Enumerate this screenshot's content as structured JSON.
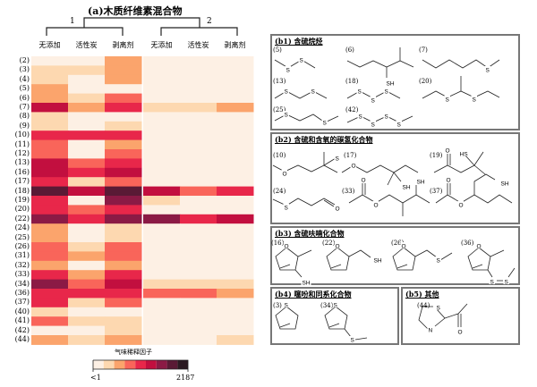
{
  "heatmap_title": "(a)木质纤维素混合物",
  "groups": [
    "1",
    "2"
  ],
  "columns": [
    "无添加",
    "活性炭",
    "剥离剂",
    "无添加",
    "活性炭",
    "剥离剂"
  ],
  "legend": {
    "title": "气味稀释因子",
    "min_label": "<1",
    "max_label": "2187"
  },
  "chart_data": {
    "type": "heatmap",
    "title": "(a)木质纤维素混合物",
    "column_groups": [
      {
        "name": "1",
        "columns": [
          "无添加",
          "活性炭",
          "剥离剂"
        ]
      },
      {
        "name": "2",
        "columns": [
          "无添加",
          "活性炭",
          "剥离剂"
        ]
      }
    ],
    "rows": [
      "(2)",
      "(3)",
      "(4)",
      "(5)",
      "(6)",
      "(7)",
      "(8)",
      "(9)",
      "(10)",
      "(11)",
      "(12)",
      "(13)",
      "(16)",
      "(17)",
      "(18)",
      "(19)",
      "(20)",
      "(22)",
      "(24)",
      "(25)",
      "(26)",
      "(31)",
      "(32)",
      "(33)",
      "(34)",
      "(36)",
      "(37)",
      "(40)",
      "(41)",
      "(42)",
      "(44)"
    ],
    "value_scale": "color level 0 (<1) to 8 (2187), odor dilution factor",
    "levels": [
      [
        0,
        0,
        2,
        0,
        0,
        0
      ],
      [
        1,
        1,
        2,
        0,
        0,
        0
      ],
      [
        1,
        0,
        2,
        0,
        0,
        0
      ],
      [
        2,
        0,
        0,
        0,
        0,
        0
      ],
      [
        2,
        1,
        3,
        0,
        0,
        0
      ],
      [
        5,
        2,
        4,
        1,
        1,
        2
      ],
      [
        1,
        0,
        0,
        0,
        0,
        0
      ],
      [
        1,
        0,
        1,
        0,
        0,
        0
      ],
      [
        4,
        4,
        4,
        0,
        0,
        0
      ],
      [
        3,
        0,
        2,
        0,
        0,
        0
      ],
      [
        3,
        0,
        3,
        0,
        0,
        0
      ],
      [
        5,
        3,
        4,
        0,
        0,
        0
      ],
      [
        5,
        4,
        5,
        0,
        0,
        0
      ],
      [
        4,
        1,
        3,
        0,
        0,
        0
      ],
      [
        7,
        5,
        7,
        5,
        3,
        4
      ],
      [
        4,
        0,
        6,
        1,
        0,
        0
      ],
      [
        4,
        3,
        4,
        0,
        0,
        0
      ],
      [
        6,
        4,
        6,
        6,
        4,
        5
      ],
      [
        2,
        0,
        1,
        0,
        0,
        0
      ],
      [
        2,
        0,
        1,
        0,
        0,
        0
      ],
      [
        3,
        1,
        3,
        0,
        0,
        0
      ],
      [
        3,
        2,
        3,
        0,
        0,
        0
      ],
      [
        2,
        0,
        2,
        0,
        0,
        0
      ],
      [
        4,
        2,
        4,
        0,
        0,
        0
      ],
      [
        6,
        3,
        5,
        1,
        1,
        1
      ],
      [
        4,
        4,
        4,
        3,
        3,
        2
      ],
      [
        4,
        1,
        3,
        0,
        0,
        0
      ],
      [
        1,
        0,
        0,
        0,
        0,
        0
      ],
      [
        3,
        1,
        1,
        0,
        0,
        0
      ],
      [
        0,
        0,
        1,
        0,
        0,
        0
      ],
      [
        2,
        1,
        2,
        0,
        0,
        1
      ]
    ],
    "colorscale": [
      "#fdf0e4",
      "#fdd8b0",
      "#fba46c",
      "#f9655a",
      "#e8274a",
      "#c20f3f",
      "#8b1a45",
      "#5a1a35",
      "#2b1a22"
    ],
    "legend_title": "气味稀释因子",
    "range_labels": [
      "<1",
      "2187"
    ]
  },
  "panels": [
    {
      "title": "(b1) 含硫烷烃",
      "compounds": [
        {
          "num": "(5)",
          "atoms": [
            "S",
            "S"
          ]
        },
        {
          "num": "(6)",
          "atoms": [
            "SH"
          ]
        },
        {
          "num": "(7)",
          "atoms": [
            "S"
          ]
        },
        {
          "num": "(13)",
          "atoms": [
            "S",
            "S"
          ]
        },
        {
          "num": "(18)",
          "atoms": [
            "S",
            "S",
            "S"
          ]
        },
        {
          "num": "(20)",
          "atoms": [
            "S",
            "S"
          ]
        },
        {
          "num": "(25)",
          "atoms": [
            "S",
            "S"
          ]
        },
        {
          "num": "(42)",
          "atoms": [
            "S",
            "S",
            "S",
            "S"
          ]
        }
      ]
    },
    {
      "title": "(b2) 含硫和含氧的碳氢化合物",
      "compounds": [
        {
          "num": "(10)",
          "atoms": [
            "O",
            "S"
          ]
        },
        {
          "num": "(17)",
          "atoms": [
            "O",
            "SH"
          ]
        },
        {
          "num": "(19)",
          "atoms": [
            "O",
            "HS"
          ]
        },
        {
          "num": "(24)",
          "atoms": [
            "S",
            "O"
          ]
        },
        {
          "num": "(33)",
          "atoms": [
            "O",
            "O",
            "SH"
          ]
        },
        {
          "num": "(37)",
          "atoms": [
            "O",
            "O",
            "SH"
          ]
        }
      ]
    },
    {
      "title": "(b3) 含硫呋喃化合物",
      "compounds": [
        {
          "num": "(16)",
          "atoms": [
            "O",
            "SH"
          ]
        },
        {
          "num": "(22)",
          "atoms": [
            "O",
            "SH"
          ]
        },
        {
          "num": "(26)",
          "atoms": [
            "O",
            "S"
          ]
        },
        {
          "num": "(36)",
          "atoms": [
            "O",
            "S",
            "S"
          ]
        }
      ]
    },
    {
      "title": "(b4) 噻吩和同系化合物",
      "compounds": [
        {
          "num": "(3)",
          "atoms": [
            "S"
          ]
        },
        {
          "num": "(34)",
          "atoms": [
            "S",
            "S"
          ]
        }
      ]
    },
    {
      "title": "(b5) 其他",
      "compounds": [
        {
          "num": "(44)",
          "atoms": [
            "S",
            "N",
            "O"
          ]
        }
      ]
    }
  ]
}
